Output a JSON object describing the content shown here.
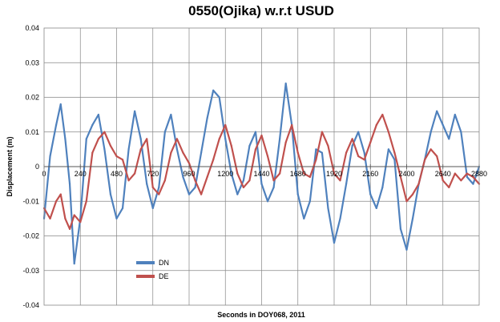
{
  "chart_data": {
    "type": "line",
    "title": "0550(Ojika) w.r.t USUD",
    "xlabel": "Seconds in DOY068, 2011",
    "ylabel": "Displacement (m)",
    "xlim": [
      0,
      2880
    ],
    "ylim": [
      -0.04,
      0.04
    ],
    "x_ticks": [
      "0",
      "240",
      "480",
      "720",
      "960",
      "1200",
      "1440",
      "1680",
      "1920",
      "2160",
      "2400",
      "2640",
      "2880"
    ],
    "y_ticks": [
      "0.04",
      "0.03",
      "0.02",
      "0.01",
      "0",
      "-0.01",
      "-0.02",
      "-0.03",
      "-0.04"
    ],
    "grid": true,
    "legend_position": "lower-left",
    "x": [
      0,
      40,
      80,
      110,
      140,
      170,
      200,
      240,
      280,
      320,
      360,
      400,
      440,
      480,
      520,
      560,
      600,
      640,
      680,
      720,
      760,
      800,
      840,
      880,
      920,
      960,
      1000,
      1040,
      1080,
      1120,
      1160,
      1200,
      1240,
      1280,
      1320,
      1360,
      1400,
      1440,
      1480,
      1520,
      1560,
      1600,
      1640,
      1680,
      1720,
      1760,
      1800,
      1840,
      1880,
      1920,
      1960,
      2000,
      2040,
      2080,
      2120,
      2160,
      2200,
      2240,
      2280,
      2320,
      2360,
      2400,
      2440,
      2480,
      2520,
      2560,
      2600,
      2640,
      2680,
      2720,
      2760,
      2800,
      2840,
      2880
    ],
    "series": [
      {
        "name": "DN",
        "color": "#4f81bd",
        "values": [
          -0.015,
          0.003,
          0.012,
          0.018,
          0.008,
          -0.005,
          -0.028,
          -0.015,
          0.008,
          0.012,
          0.015,
          0.005,
          -0.008,
          -0.015,
          -0.012,
          0.005,
          0.016,
          0.008,
          -0.005,
          -0.012,
          -0.006,
          0.01,
          0.015,
          0.005,
          -0.003,
          -0.008,
          -0.006,
          0.004,
          0.014,
          0.022,
          0.02,
          0.008,
          -0.002,
          -0.008,
          -0.004,
          0.006,
          0.01,
          -0.005,
          -0.01,
          -0.006,
          0.008,
          0.024,
          0.012,
          -0.008,
          -0.015,
          -0.01,
          0.005,
          0.004,
          -0.012,
          -0.022,
          -0.015,
          -0.005,
          0.006,
          0.01,
          0.004,
          -0.008,
          -0.012,
          -0.006,
          0.005,
          0.002,
          -0.018,
          -0.024,
          -0.015,
          -0.005,
          0.002,
          0.01,
          0.016,
          0.012,
          0.008,
          0.015,
          0.01,
          -0.003,
          -0.005,
          0.0
        ]
      },
      {
        "name": "DE",
        "color": "#c0504d",
        "values": [
          -0.012,
          -0.015,
          -0.01,
          -0.008,
          -0.015,
          -0.018,
          -0.014,
          -0.016,
          -0.01,
          0.004,
          0.008,
          0.01,
          0.006,
          0.003,
          0.002,
          -0.004,
          -0.002,
          0.005,
          0.008,
          -0.006,
          -0.008,
          -0.004,
          0.004,
          0.008,
          0.004,
          0.001,
          -0.004,
          -0.008,
          -0.003,
          0.002,
          0.008,
          0.012,
          0.006,
          -0.002,
          -0.006,
          -0.004,
          0.005,
          0.009,
          0.003,
          -0.004,
          -0.002,
          0.007,
          0.012,
          0.004,
          -0.002,
          -0.003,
          0.002,
          0.01,
          0.006,
          -0.002,
          -0.004,
          0.004,
          0.008,
          0.003,
          0.002,
          0.007,
          0.012,
          0.015,
          0.01,
          0.004,
          -0.003,
          -0.01,
          -0.008,
          -0.005,
          0.002,
          0.005,
          0.003,
          -0.004,
          -0.006,
          -0.002,
          -0.004,
          -0.002,
          -0.003,
          -0.005
        ]
      }
    ]
  }
}
